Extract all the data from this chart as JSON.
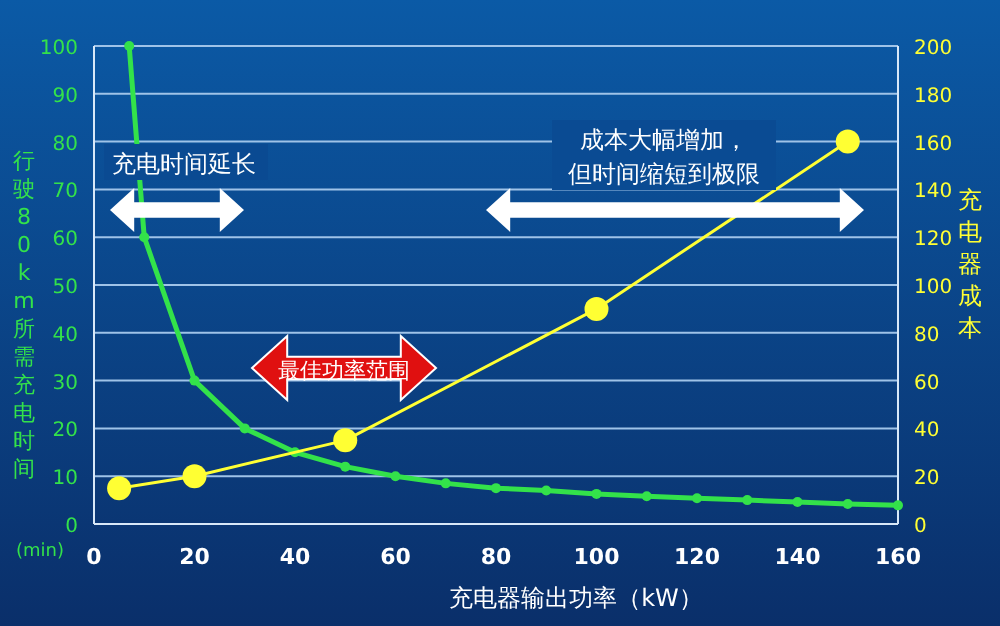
{
  "chart_data": {
    "type": "line",
    "xlabel": "充电器输出功率（kW）",
    "ylabel": "行驶80km所需充电时间",
    "y2label": "充电器成本",
    "series": [
      {
        "color": "#33e24a",
        "x": [
          7,
          10,
          20,
          30,
          40,
          50,
          60,
          70,
          80,
          90,
          100,
          110,
          120,
          130,
          140,
          150,
          160
        ],
        "values": [
          100,
          60,
          30,
          20,
          15,
          12,
          10,
          8.5,
          7.5,
          7,
          6.3,
          5.8,
          5.4,
          5,
          4.6,
          4.2,
          3.9
        ]
      },
      {
        "color": "#ffff33",
        "axis": "y2",
        "x": [
          5,
          20,
          50,
          100,
          150
        ],
        "values": [
          15,
          20,
          35,
          90,
          160
        ]
      }
    ],
    "xlim": [
      0,
      160
    ],
    "xticks": [
      0,
      20,
      40,
      60,
      80,
      100,
      120,
      140,
      160
    ],
    "ylim": [
      0,
      100
    ],
    "yticks": [
      0,
      10,
      20,
      30,
      40,
      50,
      60,
      70,
      80,
      90,
      100
    ],
    "y2lim": [
      0,
      200
    ],
    "y2ticks": [
      0,
      20,
      40,
      60,
      80,
      100,
      120,
      140,
      160,
      180,
      200
    ],
    "grid": "y",
    "marker": "circle",
    "line_style": "solid",
    "annotations": [
      "(min)",
      "充电时间延长",
      "成本大幅增加，",
      "但时间缩短到极限",
      "最佳功率范围"
    ]
  }
}
